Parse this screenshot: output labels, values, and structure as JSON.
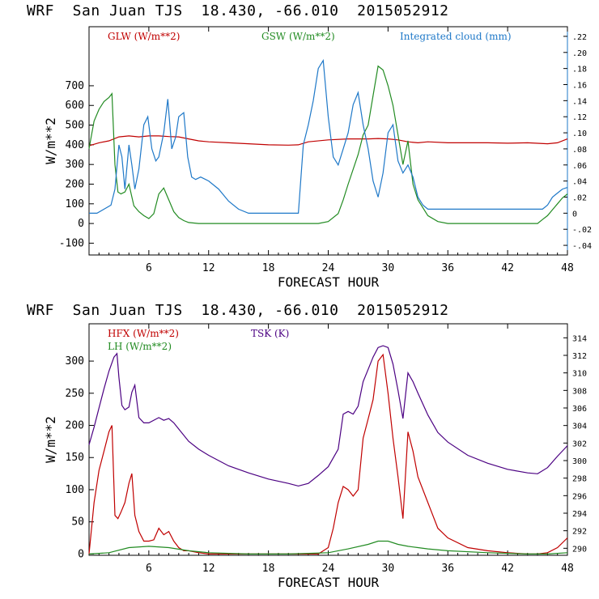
{
  "panels": [
    {
      "title": "WRF  San Juan TJS  18.430, -66.010  2015052912"
    },
    {
      "title": "WRF  San Juan TJS  18.430, -66.010  2015052912"
    }
  ],
  "chart_data": [
    {
      "type": "line",
      "xlabel": "FORECAST HOUR",
      "ylabel": "W/m**2",
      "x_ticks": [
        6,
        12,
        18,
        24,
        30,
        36,
        42,
        48
      ],
      "xlim": [
        0,
        48
      ],
      "y_ticks": [
        -100,
        0,
        100,
        200,
        300,
        400,
        500,
        600,
        700
      ],
      "ylim": [
        -160,
        1000
      ],
      "y2_ticks": [
        -0.04,
        -0.02,
        0,
        0.02,
        0.04,
        0.06,
        0.08,
        0.1,
        0.12,
        0.14,
        0.16,
        0.18,
        0.2,
        0.22
      ],
      "y2_tick_labels": [
        "-.04",
        "-.02",
        "0",
        ".02",
        ".04",
        ".06",
        ".08",
        ".10",
        ".12",
        ".14",
        ".16",
        ".18",
        ".20",
        ".22"
      ],
      "y2lim": [
        -0.052,
        0.232
      ],
      "series": [
        {
          "name": "GLW (W/m**2)",
          "color": "#c00000",
          "axis": "left",
          "x": [
            0,
            1,
            2,
            3,
            4,
            5,
            6,
            7,
            8,
            9,
            10,
            11,
            12,
            14,
            16,
            18,
            20,
            21,
            22,
            24,
            26,
            28,
            29,
            30,
            31,
            32,
            33,
            34,
            36,
            38,
            40,
            42,
            44,
            46,
            47,
            48
          ],
          "y": [
            395,
            410,
            420,
            440,
            445,
            440,
            445,
            445,
            442,
            440,
            430,
            420,
            415,
            410,
            405,
            400,
            398,
            400,
            415,
            425,
            430,
            430,
            432,
            430,
            425,
            415,
            410,
            415,
            410,
            410,
            410,
            408,
            410,
            405,
            410,
            430
          ]
        },
        {
          "name": "GSW (W/m**2)",
          "color": "#228b22",
          "axis": "left",
          "x": [
            0,
            0.5,
            1,
            1.5,
            2,
            2.3,
            2.6,
            2.9,
            3.2,
            3.6,
            4,
            4.5,
            5,
            5.5,
            6,
            6.5,
            7,
            7.5,
            8,
            8.5,
            9,
            9.5,
            10,
            11,
            12,
            14,
            18,
            21,
            22,
            23,
            24,
            25,
            25.5,
            26,
            27,
            27.5,
            28,
            28.5,
            29,
            29.5,
            30,
            30.5,
            31,
            31.5,
            32,
            32.5,
            33,
            34,
            35,
            36,
            40,
            45,
            45.5,
            46,
            46.5,
            47,
            47.5,
            48
          ],
          "y": [
            380,
            520,
            580,
            620,
            640,
            660,
            300,
            160,
            150,
            160,
            200,
            90,
            60,
            40,
            25,
            50,
            150,
            180,
            120,
            60,
            30,
            15,
            5,
            0,
            0,
            0,
            0,
            0,
            0,
            0,
            10,
            50,
            120,
            200,
            350,
            450,
            500,
            650,
            800,
            780,
            700,
            600,
            450,
            300,
            420,
            200,
            120,
            40,
            10,
            0,
            0,
            0,
            20,
            40,
            70,
            100,
            130,
            150
          ]
        },
        {
          "name": "Integrated cloud (mm)",
          "color": "#1e78c8",
          "axis": "right",
          "x": [
            0,
            0.8,
            1.5,
            2.2,
            2.6,
            3.0,
            3.3,
            3.6,
            4.0,
            4.3,
            4.6,
            5.0,
            5.5,
            5.9,
            6.3,
            6.7,
            7.0,
            7.5,
            7.9,
            8.3,
            8.7,
            9.0,
            9.5,
            9.9,
            10.3,
            10.7,
            11.2,
            12,
            13,
            14,
            15,
            16,
            17,
            18,
            19,
            20,
            21,
            21.5,
            22,
            22.5,
            23,
            23.5,
            24,
            24.5,
            25,
            25.5,
            26,
            26.5,
            27,
            27.5,
            28,
            28.5,
            29,
            29.5,
            30,
            30.5,
            31,
            31.5,
            32,
            32.5,
            33,
            33.5,
            34,
            35,
            36,
            38,
            40,
            42,
            44,
            45,
            45.5,
            46,
            46.5,
            47,
            47.5,
            48
          ],
          "y": [
            0,
            0,
            0.005,
            0.01,
            0.03,
            0.085,
            0.07,
            0.03,
            0.085,
            0.06,
            0.03,
            0.055,
            0.11,
            0.12,
            0.08,
            0.065,
            0.07,
            0.1,
            0.142,
            0.08,
            0.095,
            0.12,
            0.125,
            0.07,
            0.045,
            0.042,
            0.045,
            0.04,
            0.03,
            0.015,
            0.005,
            0,
            0,
            0,
            0,
            0,
            0,
            0.085,
            0.11,
            0.14,
            0.18,
            0.19,
            0.12,
            0.07,
            0.06,
            0.08,
            0.1,
            0.135,
            0.15,
            0.11,
            0.08,
            0.04,
            0.02,
            0.05,
            0.1,
            0.11,
            0.065,
            0.05,
            0.06,
            0.045,
            0.02,
            0.01,
            0.005,
            0.005,
            0.005,
            0.005,
            0.005,
            0.005,
            0.005,
            0.005,
            0.005,
            0.01,
            0.02,
            0.025,
            0.03,
            0.032
          ]
        }
      ]
    },
    {
      "type": "line",
      "xlabel": "FORECAST HOUR",
      "ylabel": "W/m**2",
      "x_ticks": [
        6,
        12,
        18,
        24,
        30,
        36,
        42,
        48
      ],
      "xlim": [
        0,
        48
      ],
      "y_ticks": [
        0,
        50,
        100,
        150,
        200,
        250,
        300
      ],
      "ylim": [
        -2,
        358
      ],
      "y2_ticks": [
        290,
        292,
        294,
        296,
        298,
        300,
        302,
        304,
        306,
        308,
        310,
        312,
        314
      ],
      "y2lim": [
        289.2,
        315.6
      ],
      "series": [
        {
          "name": "HFX (W/m**2)",
          "color": "#c00000",
          "axis": "left",
          "x": [
            0,
            0.5,
            1,
            1.5,
            2,
            2.3,
            2.6,
            2.9,
            3.2,
            3.6,
            4,
            4.3,
            4.6,
            5,
            5.5,
            6,
            6.5,
            7,
            7.5,
            8,
            8.5,
            9,
            9.5,
            10,
            11,
            12,
            14,
            18,
            22,
            23,
            24,
            24.5,
            25,
            25.5,
            26,
            26.5,
            27,
            27.5,
            28,
            28.5,
            29,
            29.5,
            30,
            30.5,
            31,
            31.5,
            32,
            32.5,
            33,
            34,
            35,
            36,
            38,
            40,
            42,
            44,
            45,
            46,
            47,
            48
          ],
          "y": [
            0,
            80,
            130,
            160,
            190,
            200,
            60,
            55,
            65,
            80,
            110,
            125,
            60,
            35,
            20,
            20,
            22,
            40,
            30,
            35,
            20,
            10,
            5,
            5,
            2,
            0,
            0,
            0,
            0,
            0,
            10,
            40,
            80,
            105,
            100,
            90,
            100,
            180,
            210,
            240,
            300,
            310,
            250,
            180,
            120,
            55,
            190,
            160,
            120,
            80,
            40,
            25,
            10,
            5,
            2,
            0,
            0,
            2,
            10,
            25
          ]
        },
        {
          "name": "LH  (W/m**2)",
          "color": "#228b22",
          "axis": "left",
          "x": [
            0,
            2,
            4,
            6,
            8,
            10,
            12,
            16,
            20,
            24,
            26,
            28,
            29,
            30,
            31,
            32,
            33,
            34,
            36,
            40,
            44,
            46,
            48
          ],
          "y": [
            0,
            2,
            10,
            12,
            10,
            5,
            2,
            0,
            0,
            2,
            8,
            15,
            20,
            20,
            15,
            12,
            10,
            8,
            5,
            2,
            0,
            0,
            2
          ]
        },
        {
          "name": "TSK (K)",
          "color": "#4b0082",
          "axis": "right",
          "x": [
            0,
            0.5,
            1,
            1.5,
            2,
            2.5,
            2.8,
            3.0,
            3.3,
            3.6,
            4.0,
            4.3,
            4.6,
            5.0,
            5.5,
            6,
            7,
            7.5,
            8,
            8.5,
            9,
            10,
            11,
            12,
            14,
            16,
            18,
            20,
            21,
            22,
            23,
            24,
            25,
            25.5,
            26,
            26.5,
            27,
            27.5,
            28,
            28.5,
            29,
            29.5,
            30,
            30.5,
            31,
            31.5,
            32,
            32.5,
            33,
            34,
            35,
            36,
            38,
            40,
            42,
            44,
            45,
            46,
            47,
            48
          ],
          "y": [
            301.8,
            303.8,
            306,
            308.2,
            310.2,
            311.8,
            312.2,
            309.5,
            306.3,
            305.8,
            306.1,
            307.8,
            308.6,
            304.9,
            304.3,
            304.3,
            304.9,
            304.6,
            304.8,
            304.3,
            303.6,
            302.2,
            301.3,
            300.6,
            299.4,
            298.6,
            297.9,
            297.4,
            297.1,
            297.4,
            298.3,
            299.3,
            301.3,
            305.3,
            305.6,
            305.3,
            306.2,
            309,
            310.4,
            311.8,
            312.9,
            313.1,
            312.9,
            311,
            308,
            304.8,
            310,
            309,
            307.7,
            305.2,
            303.2,
            302.1,
            300.6,
            299.7,
            299,
            298.6,
            298.5,
            299.2,
            300.5,
            301.7
          ]
        }
      ]
    }
  ]
}
